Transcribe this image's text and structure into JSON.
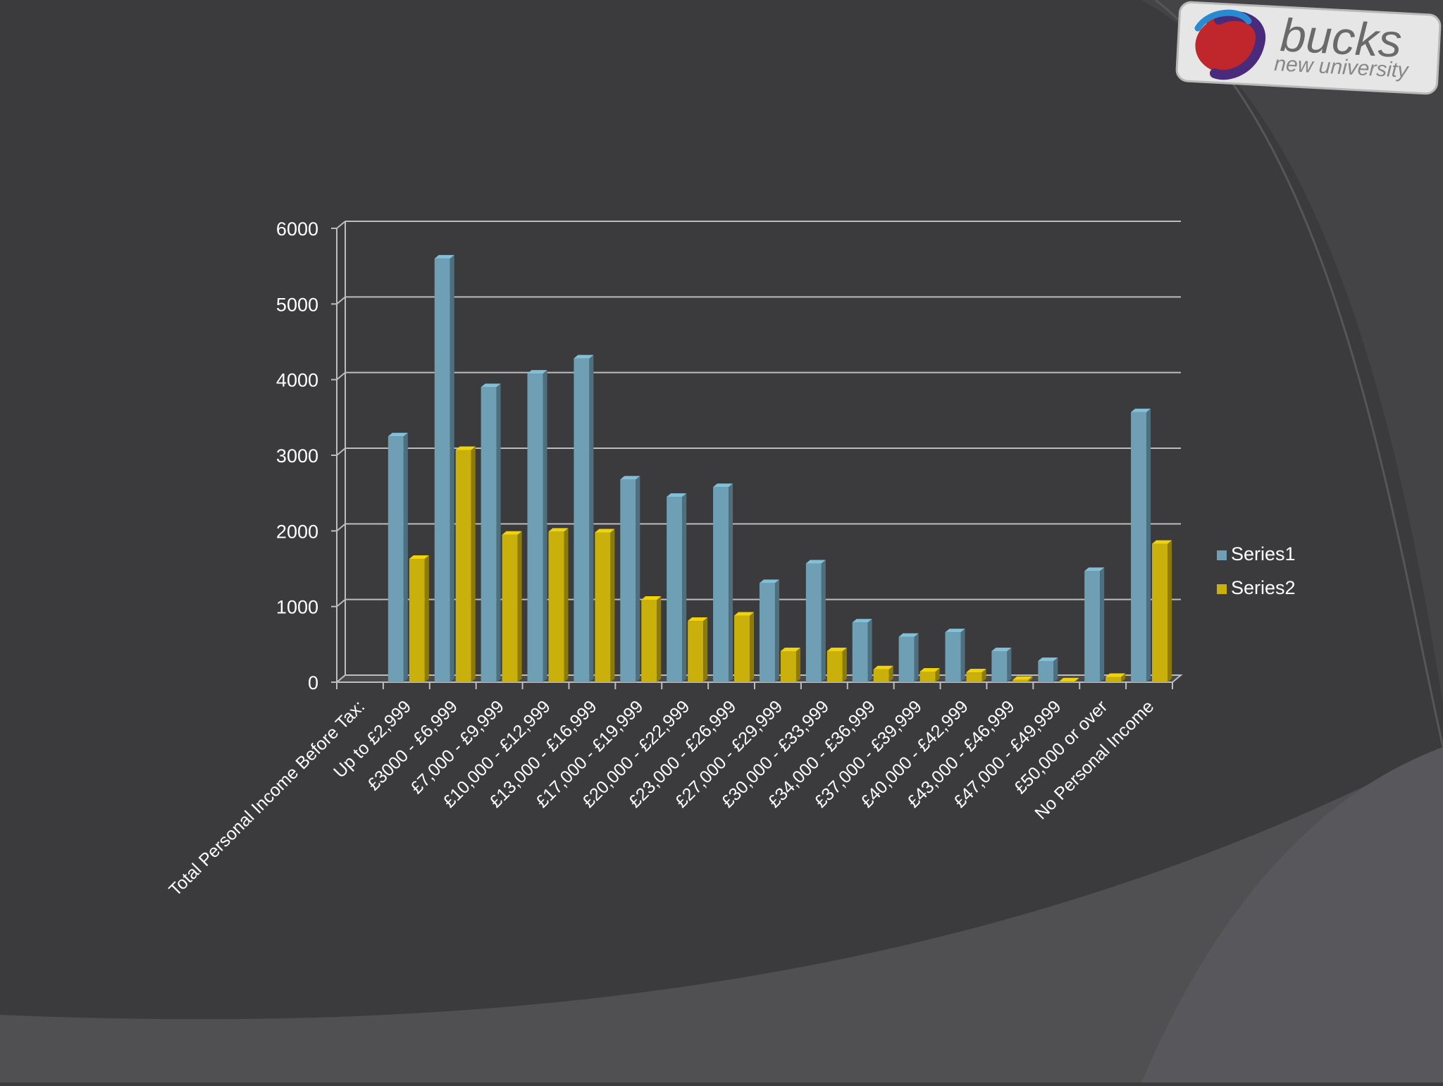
{
  "logo": {
    "brand": "bucks",
    "subtitle": "new university"
  },
  "chart_data": {
    "type": "bar",
    "title": "",
    "xlabel": "",
    "ylabel": "",
    "ylim": [
      0,
      6000
    ],
    "yticks": [
      0,
      1000,
      2000,
      3000,
      4000,
      5000,
      6000
    ],
    "grid": true,
    "legend_position": "right",
    "categories": [
      "Total Personal Income Before Tax:",
      "Up to £2,999",
      "£3000 - £6,999",
      "£7,000 - £9,999",
      "£10,000 - £12,999",
      "£13,000 - £16,999",
      "£17,000 - £19,999",
      "£20,000 - £22,999",
      "£23,000 - £26,999",
      "£27,000 - £29,999",
      "£30,000 - £33,999",
      "£34,000 - £36,999",
      "£37,000 - £39,999",
      "£40,000 - £42,999",
      "£43,000 - £46,999",
      "£47,000 - £49,999",
      "£50,000 or over",
      "No Personal Income"
    ],
    "series": [
      {
        "name": "Series1",
        "color": "#6e9fb4",
        "values": [
          0,
          3250,
          5600,
          3900,
          4080,
          4280,
          2680,
          2450,
          2580,
          1310,
          1570,
          790,
          600,
          660,
          410,
          280,
          1470,
          3570
        ]
      },
      {
        "name": "Series2",
        "color": "#c9b00a",
        "values": [
          0,
          1630,
          3070,
          1950,
          1990,
          1980,
          1090,
          810,
          880,
          410,
          410,
          170,
          140,
          130,
          30,
          10,
          70,
          1830
        ]
      }
    ]
  }
}
